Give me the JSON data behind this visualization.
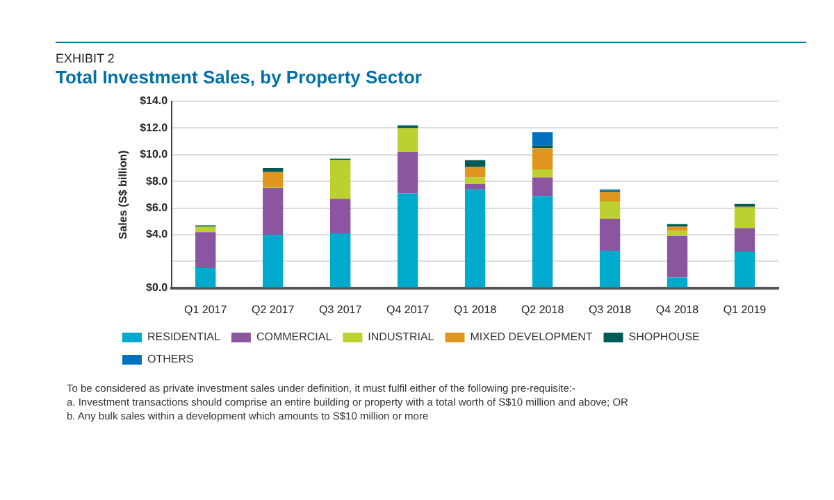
{
  "chart_data": {
    "type": "bar",
    "title": "Total Investment Sales, by Property Sector",
    "subtitle": "EXHIBIT 2",
    "ylabel": "Sales (S$ billion)",
    "categories": [
      "Q1 2017",
      "Q2 2017",
      "Q3 2017",
      "Q4 2017",
      "Q1 2018",
      "Q2 2018",
      "Q3 2018",
      "Q4 2018",
      "Q1 2019"
    ],
    "series": [
      {
        "name": "RESIDENTIAL",
        "color": "#00aacc",
        "values": [
          1.5,
          4.0,
          4.1,
          7.1,
          7.4,
          6.9,
          2.8,
          0.8,
          2.7
        ]
      },
      {
        "name": "COMMERCIAL",
        "color": "#8b55a0",
        "values": [
          2.7,
          3.5,
          2.6,
          3.1,
          0.4,
          1.4,
          2.4,
          3.1,
          1.8
        ]
      },
      {
        "name": "INDUSTRIAL",
        "color": "#bcd030",
        "values": [
          0.4,
          0.1,
          2.9,
          1.8,
          0.5,
          0.6,
          1.3,
          0.4,
          1.5
        ]
      },
      {
        "name": "MIXED DEVELOPMENT",
        "color": "#e0961e",
        "values": [
          null,
          1.1,
          null,
          null,
          0.8,
          1.6,
          0.7,
          0.3,
          0.1
        ]
      },
      {
        "name": "SHOPHOUSE",
        "color": "#005a55",
        "values": [
          0.1,
          0.3,
          0.1,
          0.2,
          0.5,
          0.2,
          0.1,
          0.2,
          0.2
        ]
      },
      {
        "name": "OTHERS",
        "color": "#0070c0",
        "values": [
          null,
          null,
          null,
          null,
          null,
          1.0,
          0.1,
          null,
          null
        ]
      }
    ],
    "stacked": true,
    "ylim": [
      0,
      14
    ],
    "yticks": [
      {
        "value": 0,
        "label": "$0.0"
      },
      {
        "value": 2,
        "label": null
      },
      {
        "value": 4,
        "label": "$4.0"
      },
      {
        "value": 6,
        "label": "$6.0"
      },
      {
        "value": 8,
        "label": "$8.0"
      },
      {
        "value": 10,
        "label": "$10.0"
      },
      {
        "value": 12,
        "label": "$12.0"
      },
      {
        "value": 14,
        "label": "$14.0"
      }
    ],
    "grid": "y",
    "legend": "bottom",
    "annotations": [
      "To be considered as private investment sales under definition, it must fulfil either of the following pre-requisite:-",
      "a.  Investment transactions should comprise an entire building or property with a total worth of S$10 million and above; OR",
      "b. Any bulk sales within a development which amounts to S$10 million or more"
    ]
  }
}
